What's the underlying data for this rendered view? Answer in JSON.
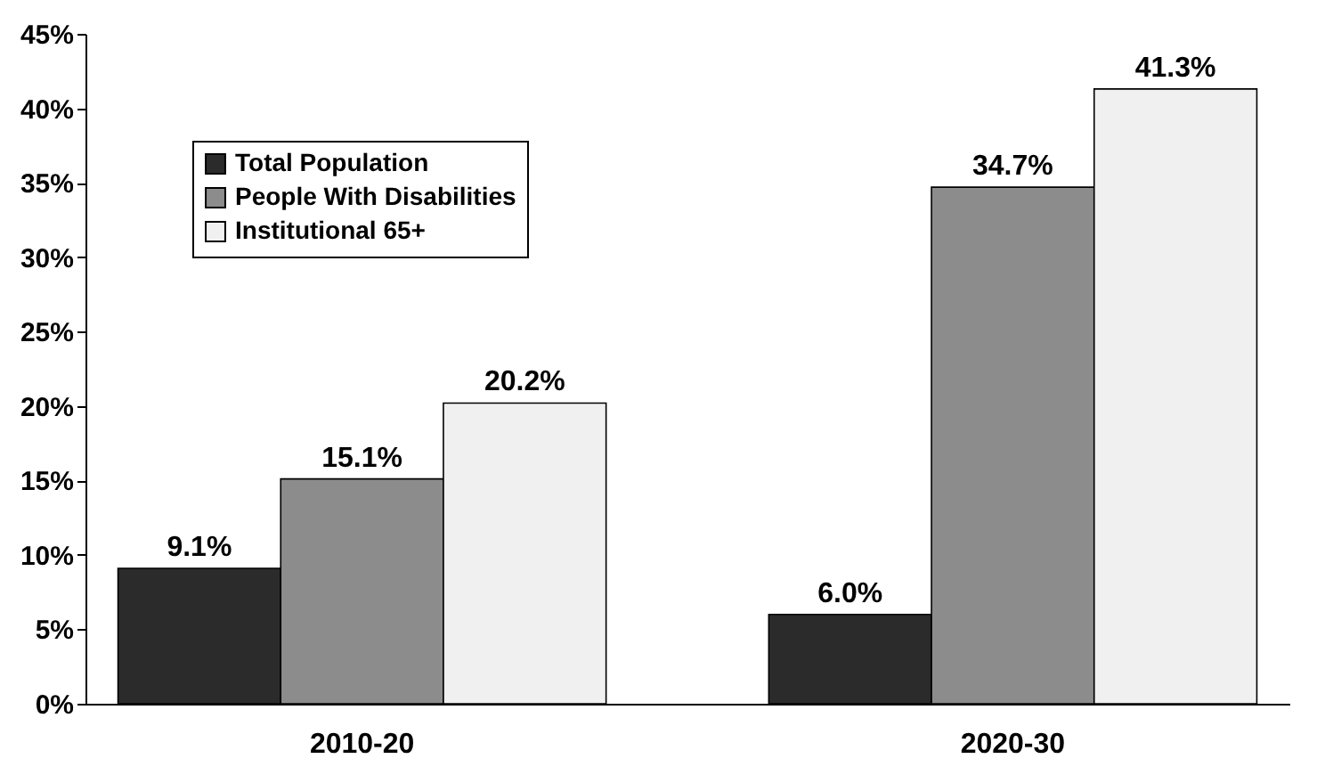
{
  "chart_data": {
    "type": "bar",
    "categories": [
      "2010-20",
      "2020-30"
    ],
    "series": [
      {
        "name": "Total Population",
        "color": "#2b2b2b",
        "values": [
          9.1,
          6.0
        ],
        "value_labels": [
          "9.1%",
          "6.0%"
        ]
      },
      {
        "name": "People With Disabilities",
        "color": "#8c8c8c",
        "values": [
          15.1,
          34.7
        ],
        "value_labels": [
          "15.1%",
          "34.7%"
        ]
      },
      {
        "name": "Institutional 65+",
        "color": "#f0f0f0",
        "values": [
          20.2,
          41.3
        ],
        "value_labels": [
          "20.2%",
          "41.3%"
        ]
      }
    ],
    "ylim": [
      0,
      45
    ],
    "yticks": [
      {
        "value": 0,
        "label": "0%"
      },
      {
        "value": 5,
        "label": "5%"
      },
      {
        "value": 10,
        "label": "10%"
      },
      {
        "value": 15,
        "label": "15%"
      },
      {
        "value": 20,
        "label": "20%"
      },
      {
        "value": 25,
        "label": "25%"
      },
      {
        "value": 30,
        "label": "30%"
      },
      {
        "value": 35,
        "label": "35%"
      },
      {
        "value": 40,
        "label": "40%"
      },
      {
        "value": 45,
        "label": "45%"
      }
    ],
    "grid": false,
    "legend": "top left"
  }
}
